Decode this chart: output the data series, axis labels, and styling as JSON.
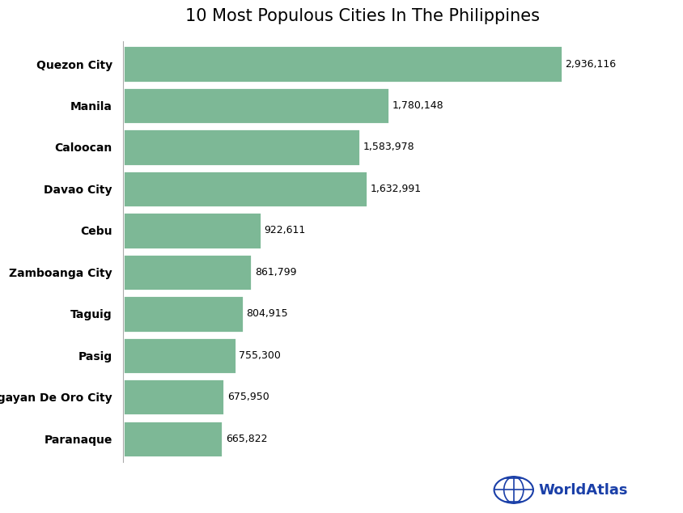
{
  "title": "10 Most Populous Cities In The Philippines",
  "cities": [
    "Quezon City",
    "Manila",
    "Caloocan",
    "Davao City",
    "Cebu",
    "Zamboanga City",
    "Taguig",
    "Pasig",
    "Cagayan De Oro City",
    "Paranaque"
  ],
  "values": [
    2936116,
    1780148,
    1583978,
    1632991,
    922611,
    861799,
    804915,
    755300,
    675950,
    665822
  ],
  "bar_color": "#7db896",
  "bg_color": "#ffffff",
  "text_color": "#000000",
  "label_color": "#000000",
  "title_fontsize": 15,
  "label_fontsize": 10,
  "value_fontsize": 9,
  "watermark_text": "WorldAtlas",
  "watermark_color": "#1a3fa8",
  "xlim": [
    0,
    3200000
  ]
}
